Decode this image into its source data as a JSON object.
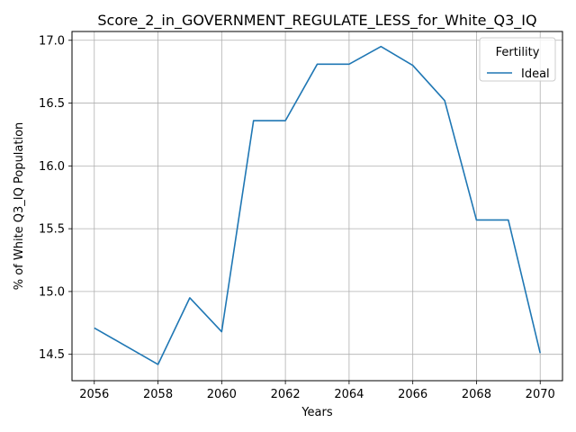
{
  "chart_data": {
    "type": "line",
    "title": "Score_2_in_GOVERNMENT_REGULATE_LESS_for_White_Q3_IQ",
    "xlabel": "Years",
    "ylabel": "% of White Q3_IQ Population",
    "xlim": [
      2055.3,
      2070.7
    ],
    "ylim": [
      14.29,
      17.07
    ],
    "xticks": [
      2056,
      2058,
      2060,
      2062,
      2064,
      2066,
      2068,
      2070
    ],
    "yticks": [
      14.5,
      15.0,
      15.5,
      16.0,
      16.5,
      17.0
    ],
    "xtick_labels": [
      "2056",
      "2058",
      "2060",
      "2062",
      "2064",
      "2066",
      "2068",
      "2070"
    ],
    "ytick_labels": [
      "14.5",
      "15.0",
      "15.5",
      "16.0",
      "16.5",
      "17.0"
    ],
    "grid": true,
    "legend": {
      "title": "Fertility",
      "placement": "top-right"
    },
    "series": [
      {
        "name": "Ideal",
        "color": "#1f77b4",
        "x": [
          2056,
          2058,
          2059,
          2060,
          2061,
          2062,
          2063,
          2064,
          2065,
          2066,
          2067,
          2068,
          2069,
          2070
        ],
        "y": [
          14.71,
          14.42,
          14.95,
          14.68,
          16.36,
          16.36,
          16.81,
          16.81,
          16.95,
          16.8,
          16.52,
          15.57,
          15.57,
          14.51
        ]
      }
    ]
  }
}
